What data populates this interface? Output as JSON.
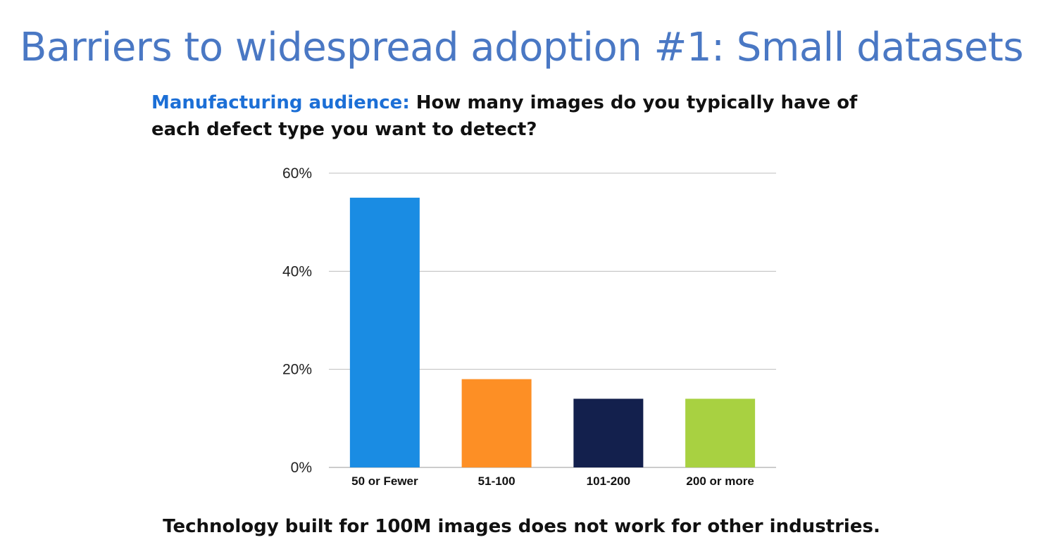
{
  "slide": {
    "title": "Barriers to widespread adoption #1: Small datasets",
    "question_lead": "Manufacturing audience:",
    "question_text": " How many images do you typically have of each defect type you want to detect?",
    "footer": "Technology built for 100M images does not work for other industries."
  },
  "chart_data": {
    "type": "bar",
    "categories": [
      "50 or Fewer",
      "51-100",
      "101-200",
      "200 or more"
    ],
    "values": [
      55,
      18,
      14,
      14
    ],
    "value_unit": "%",
    "colors": [
      "#1a8ce3",
      "#fd8f25",
      "#13204d",
      "#a8d141"
    ],
    "ylim": [
      0,
      60
    ],
    "yticks": [
      0,
      20,
      40,
      60
    ],
    "ytick_labels": [
      "0%",
      "20%",
      "40%",
      "60%"
    ],
    "grid": true,
    "legend": "none"
  }
}
